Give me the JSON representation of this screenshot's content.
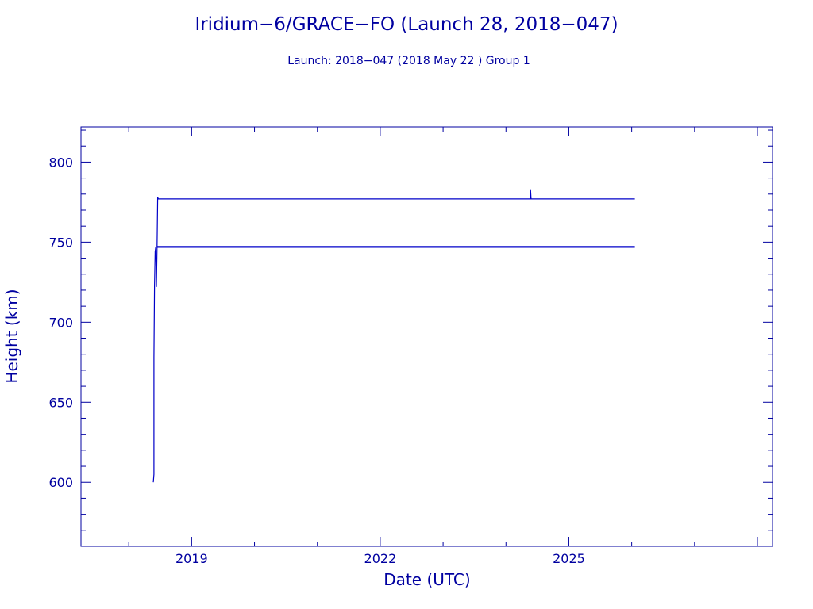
{
  "chart_data": {
    "type": "line",
    "title": "Iridium−6/GRACE−FO (Launch 28, 2018−047)",
    "subtitle": "Launch: 2018−047  (2018 May 22 )  Group 1",
    "xlabel": "Date (UTC)",
    "ylabel": "Height (km)",
    "xlim": [
      2017.24,
      2028.24
    ],
    "ylim": [
      560,
      822
    ],
    "x_ticks": [
      {
        "value": 2019,
        "label": "2019"
      },
      {
        "value": 2022,
        "label": "2022"
      },
      {
        "value": 2025,
        "label": "2025"
      }
    ],
    "y_ticks": [
      {
        "value": 600,
        "label": "600"
      },
      {
        "value": 650,
        "label": "650"
      },
      {
        "value": 700,
        "label": "700"
      },
      {
        "value": 750,
        "label": "750"
      },
      {
        "value": 800,
        "label": "800"
      }
    ],
    "series": [
      {
        "x": [
          2018.39,
          2018.4,
          2018.4,
          2018.41,
          2018.42,
          2018.43,
          2018.44,
          2018.45,
          2018.46,
          2018.47,
          2018.48,
          2018.5,
          2019.0,
          2020.0,
          2022.0,
          2024.0,
          2024.39,
          2024.39,
          2024.4,
          2026.05
        ],
        "y": [
          600,
          605,
          678,
          722,
          744,
          747,
          722,
          746,
          778,
          777,
          777,
          777,
          777,
          777,
          777,
          777,
          777,
          783,
          777,
          777
        ]
      },
      {
        "x": [
          2018.45,
          2018.52,
          2019.0,
          2020.0,
          2021.0,
          2022.0,
          2023.0,
          2024.0,
          2025.0,
          2026.05
        ],
        "y": [
          747,
          747,
          747,
          747,
          747,
          747,
          747,
          747,
          747,
          747
        ]
      }
    ],
    "grid": false,
    "legend": "none"
  }
}
